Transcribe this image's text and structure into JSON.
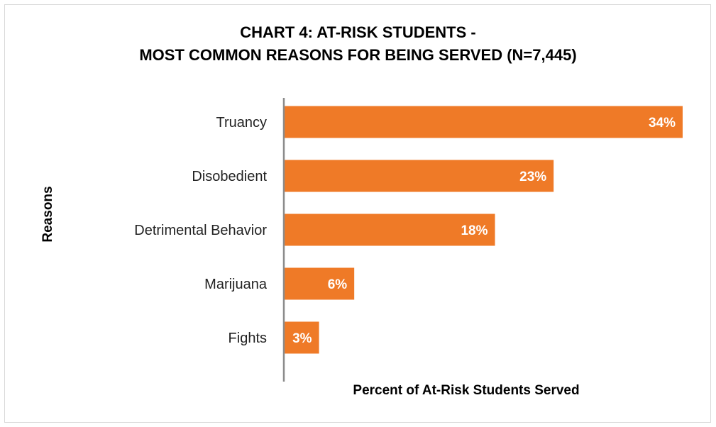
{
  "chart_data": {
    "type": "bar",
    "orientation": "horizontal",
    "title_line1": "CHART 4: AT-RISK STUDENTS -",
    "title_line2": "MOST COMMON REASONS FOR BEING SERVED (N=7,445)",
    "xlabel": "Percent of At-Risk Students Served",
    "ylabel": "Reasons",
    "categories": [
      "Truancy",
      "Disobedient",
      "Detrimental Behavior",
      "Marijuana",
      "Fights"
    ],
    "values": [
      34,
      23,
      18,
      6,
      3
    ],
    "value_labels": [
      "34%",
      "23%",
      "18%",
      "6%",
      "3%"
    ],
    "xlim": [
      0,
      34
    ],
    "grid": false,
    "legend": "none",
    "bar_color": "#EF7A27"
  }
}
